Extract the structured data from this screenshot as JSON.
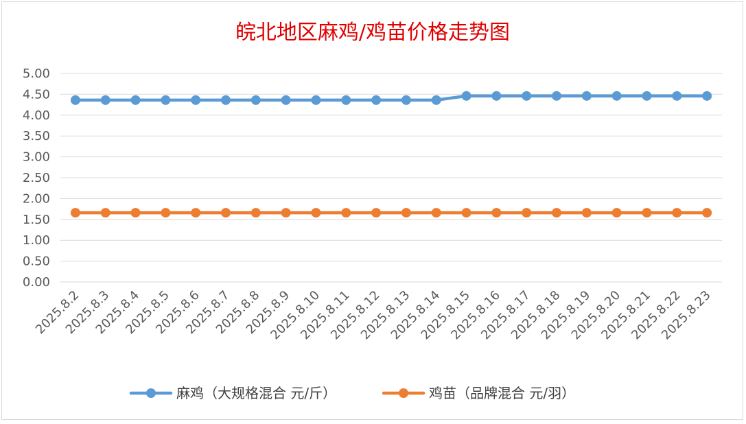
{
  "chart_data": {
    "type": "line",
    "title": "皖北地区麻鸡/鸡苗价格走势图",
    "categories": [
      "2025.8.2",
      "2025.8.3",
      "2025.8.4",
      "2025.8.5",
      "2025.8.6",
      "2025.8.7",
      "2025.8.8",
      "2025.8.9",
      "2025.8.10",
      "2025.8.11",
      "2025.8.12",
      "2025.8.13",
      "2025.8.14",
      "2025.8.15",
      "2025.8.16",
      "2025.8.17",
      "2025.8.18",
      "2025.8.19",
      "2025.8.20",
      "2025.8.21",
      "2025.8.22",
      "2025.8.23"
    ],
    "yticks": [
      "5.00",
      "4.50",
      "4.00",
      "3.50",
      "3.00",
      "2.50",
      "2.00",
      "1.50",
      "1.00",
      "0.50",
      "0.00"
    ],
    "ylim": [
      0,
      5
    ],
    "grid": true,
    "legend_position": "bottom",
    "series": [
      {
        "name": "麻鸡（大规格混合 元/斤）",
        "color": "#5b9bd5",
        "values": [
          4.36,
          4.36,
          4.36,
          4.36,
          4.36,
          4.36,
          4.36,
          4.36,
          4.36,
          4.36,
          4.36,
          4.36,
          4.36,
          4.46,
          4.46,
          4.46,
          4.46,
          4.46,
          4.46,
          4.46,
          4.46,
          4.46
        ]
      },
      {
        "name": "鸡苗（品牌混合 元/羽）",
        "color": "#ed7d31",
        "values": [
          1.66,
          1.66,
          1.66,
          1.66,
          1.66,
          1.66,
          1.66,
          1.66,
          1.66,
          1.66,
          1.66,
          1.66,
          1.66,
          1.66,
          1.66,
          1.66,
          1.66,
          1.66,
          1.66,
          1.66,
          1.66,
          1.66
        ]
      }
    ]
  }
}
